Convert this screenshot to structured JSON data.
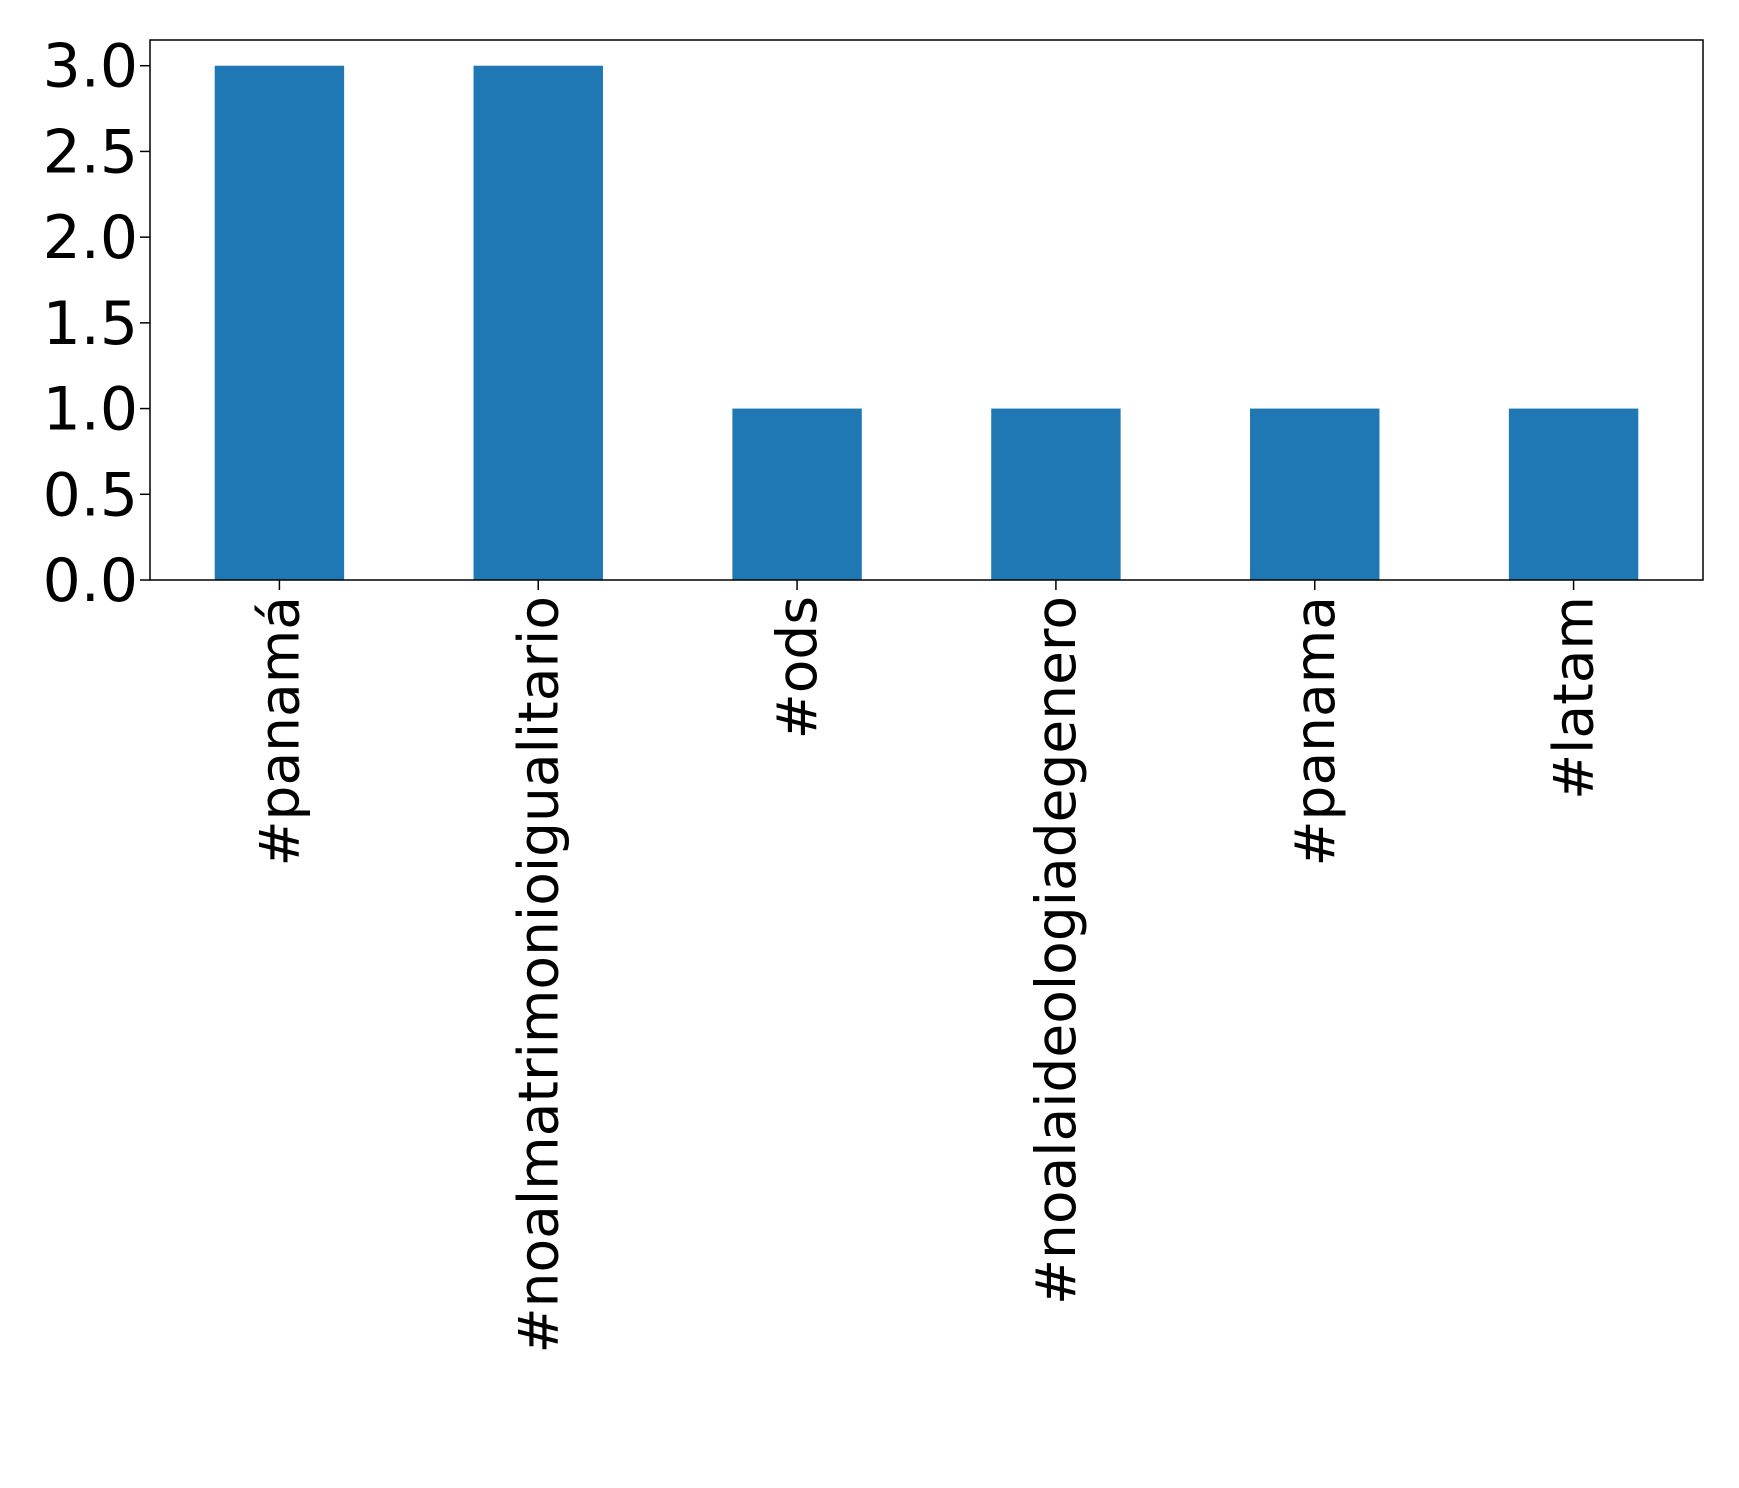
{
  "chart_data": {
    "type": "bar",
    "title": "",
    "xlabel": "",
    "ylabel": "",
    "categories": [
      "#panamá",
      "#noalmatrimonioigualitario",
      "#ods",
      "#noalaideologiadegenero",
      "#panama",
      "#latam"
    ],
    "values": [
      3,
      3,
      1,
      1,
      1,
      1
    ],
    "ylim": [
      0,
      3.15
    ],
    "yticks": [
      0.0,
      0.5,
      1.0,
      1.5,
      2.0,
      2.5,
      3.0
    ],
    "ytick_labels": [
      "0.0",
      "0.5",
      "1.0",
      "1.5",
      "2.0",
      "2.5",
      "3.0"
    ],
    "bar_color": "#1f77b4",
    "grid": false,
    "legend": "none"
  }
}
